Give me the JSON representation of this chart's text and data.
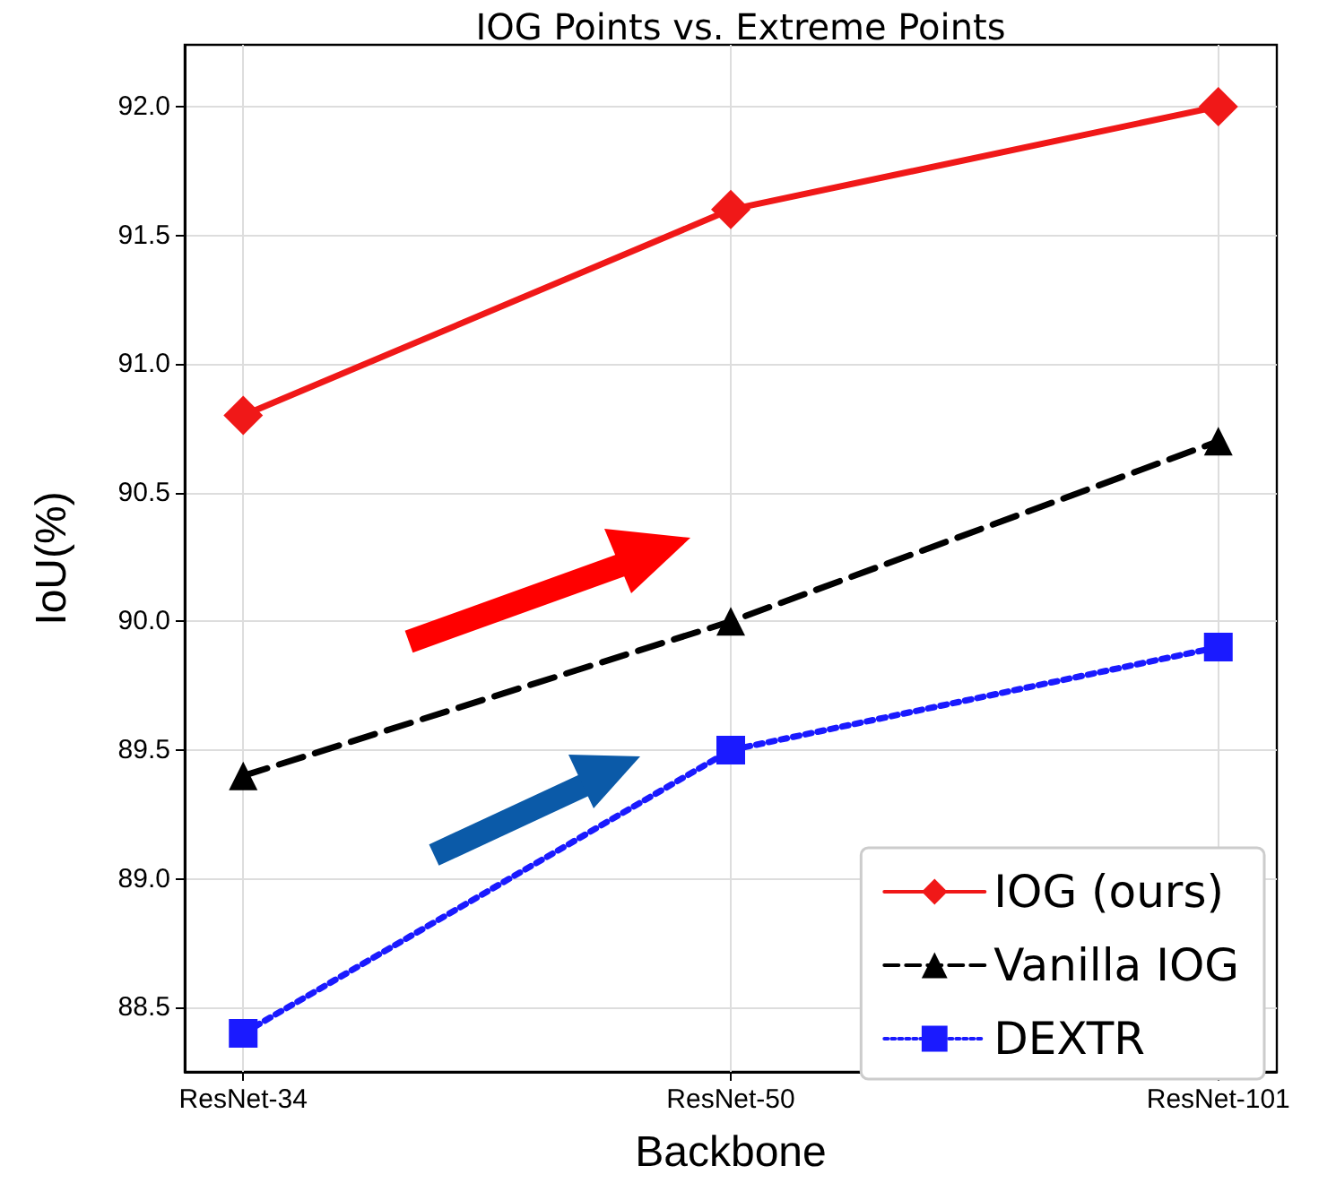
{
  "chart_data": {
    "type": "line",
    "title": "IOG Points vs. Extreme Points",
    "xlabel": "Backbone",
    "ylabel": "IoU(%)",
    "categories": [
      "ResNet-34",
      "ResNet-50",
      "ResNet-101"
    ],
    "series": [
      {
        "name": "IOG (ours)",
        "color": "#f01818",
        "values": [
          90.8,
          91.6,
          92.0
        ],
        "marker": "diamond",
        "line_style": "solid"
      },
      {
        "name": "Vanilla IOG",
        "color": "#000000",
        "values": [
          89.4,
          90.0,
          90.7
        ],
        "marker": "triangle",
        "line_style": "dashed"
      },
      {
        "name": "DEXTR",
        "color": "#1a1aff",
        "values": [
          88.4,
          89.5,
          89.9
        ],
        "marker": "square",
        "line_style": "dotted"
      }
    ],
    "ylim": [
      88.25,
      92.24
    ],
    "yticks": [
      {
        "value": 88.5,
        "label": "88.5"
      },
      {
        "value": 89.0,
        "label": "89.0"
      },
      {
        "value": 89.5,
        "label": "89.5"
      },
      {
        "value": 90.0,
        "label": "90.0"
      },
      {
        "value": 90.5,
        "label": "90.5"
      },
      {
        "value": 91.0,
        "label": "91.0"
      },
      {
        "value": 91.5,
        "label": "91.5"
      },
      {
        "value": 92.0,
        "label": "92.0"
      }
    ],
    "grid": true,
    "legend": "bottom right"
  }
}
